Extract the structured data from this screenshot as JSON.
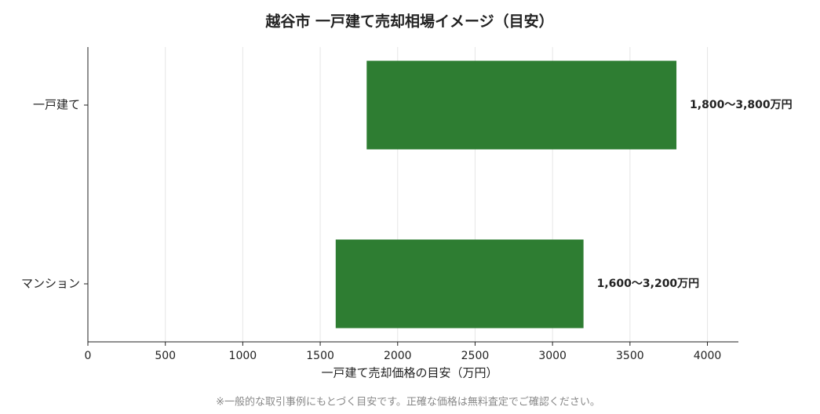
{
  "chart_data": {
    "type": "range-bar",
    "title": "越谷市 一戸建て売却相場イメージ（目安）",
    "categories": [
      "一戸建て",
      "マンション"
    ],
    "low": [
      1800,
      1600
    ],
    "high": [
      3800,
      3200
    ],
    "value_labels": [
      "1,800〜3,800万円",
      "1,600〜3,200万円"
    ],
    "color": "#2e7d32",
    "xlabel": "一戸建て売却価格の目安（万円）",
    "xlim": [
      0,
      4200
    ],
    "xticks": [
      0,
      500,
      1000,
      1500,
      2000,
      2500,
      3000,
      3500,
      4000
    ],
    "grid": true,
    "footnote": "※一般的な取引事例にもとづく目安です。正確な価格は無料査定でご確認ください。"
  }
}
